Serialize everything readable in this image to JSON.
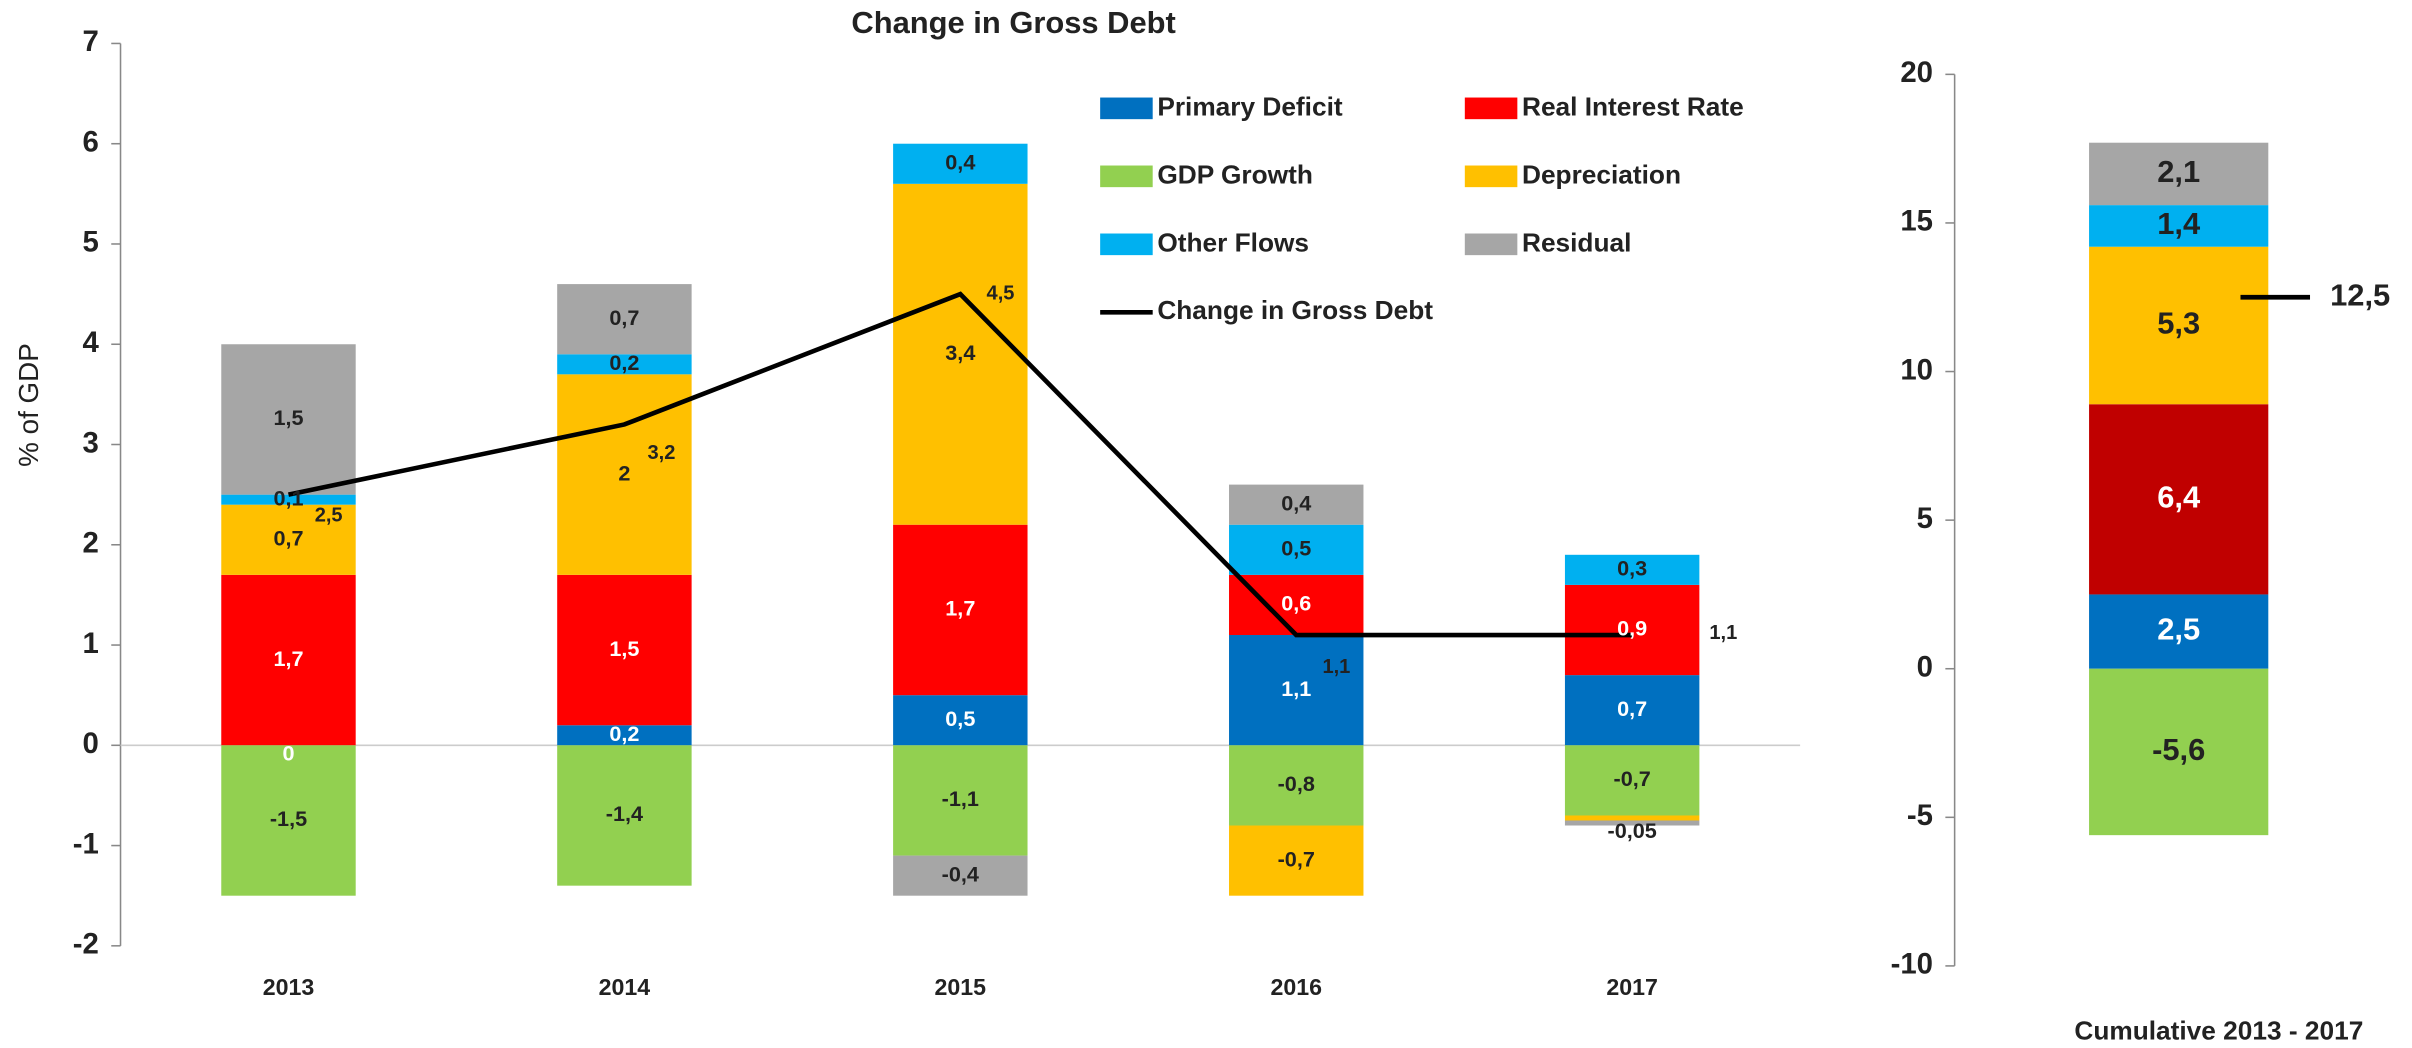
{
  "chart_data": [
    {
      "type": "bar",
      "stacked": true,
      "title": "Change in Gross Debt",
      "y_label": "% of GDP",
      "categories": [
        "2013",
        "2014",
        "2015",
        "2016",
        "2017"
      ],
      "ylim": [
        -2,
        7
      ],
      "yticks": [
        -2,
        -1,
        0,
        1,
        2,
        3,
        4,
        5,
        6,
        7
      ],
      "series": [
        {
          "name": "Primary Deficit",
          "color": "#0070c0",
          "values": [
            0,
            0.2,
            0.5,
            1.1,
            0.7
          ],
          "value_labels": [
            "0",
            "0,2",
            "0,5",
            "1,1",
            "0,7"
          ]
        },
        {
          "name": "Real Interest Rate",
          "color": "#ff0000",
          "values": [
            1.7,
            1.5,
            1.7,
            0.6,
            0.9
          ],
          "value_labels": [
            "1,7",
            "1,5",
            "1,7",
            "0,6",
            "0,9"
          ]
        },
        {
          "name": "GDP Growth",
          "color": "#92d050",
          "values": [
            -1.5,
            -1.4,
            -1.1,
            -0.8,
            -0.7
          ],
          "value_labels": [
            "-1,5",
            "-1,4",
            "-1,1",
            "-0,8",
            "-0,7"
          ]
        },
        {
          "name": "Depreciation",
          "color": "#ffc000",
          "values": [
            0.7,
            2,
            3.4,
            -0.7,
            -0.05
          ],
          "value_labels": [
            "0,7",
            "2",
            "3,4",
            "-0,7",
            null
          ]
        },
        {
          "name": "Other Flows",
          "color": "#00b0f0",
          "values": [
            0.1,
            0.2,
            0.4,
            0.5,
            0.3
          ],
          "value_labels": [
            "0,1",
            "0,2",
            "0,4",
            "0,5",
            "0,3"
          ]
        },
        {
          "name": "Residual",
          "color": "#a6a6a6",
          "values": [
            1.5,
            0.7,
            -0.4,
            0.4,
            -0.05
          ],
          "value_labels": [
            "1,5",
            "0,7",
            "-0,4",
            "0,4",
            "-0,05"
          ]
        },
        {
          "name": "Change in Gross Debt",
          "type": "line",
          "color": "#000000",
          "values": [
            2.5,
            3.2,
            4.5,
            1.1,
            1.1
          ],
          "value_labels": [
            "2,5",
            "3,2",
            "4,5",
            "1,1",
            "1,1"
          ]
        }
      ]
    },
    {
      "type": "bar",
      "stacked": true,
      "categories": [
        "Cumulative 2013 - 2017"
      ],
      "ylim": [
        -10,
        20
      ],
      "yticks": [
        -10,
        -5,
        0,
        5,
        10,
        15,
        20
      ],
      "series": [
        {
          "color": "#0070c0",
          "values": [
            2.5
          ],
          "value_labels": [
            "2,5"
          ]
        },
        {
          "color": "#c00000",
          "values": [
            6.4
          ],
          "value_labels": [
            "6,4"
          ]
        },
        {
          "color": "#92d050",
          "values": [
            -5.6
          ],
          "value_labels": [
            "-5,6"
          ]
        },
        {
          "color": "#ffc000",
          "values": [
            5.3
          ],
          "value_labels": [
            "5,3"
          ]
        },
        {
          "color": "#00b0f0",
          "values": [
            1.4
          ],
          "value_labels": [
            "1,4"
          ]
        },
        {
          "color": "#a6a6a6",
          "values": [
            2.1
          ],
          "value_labels": [
            "2,1"
          ]
        },
        {
          "type": "line",
          "color": "#000000",
          "values": [
            12.5
          ],
          "value_labels": [
            "12,5"
          ]
        }
      ]
    }
  ]
}
